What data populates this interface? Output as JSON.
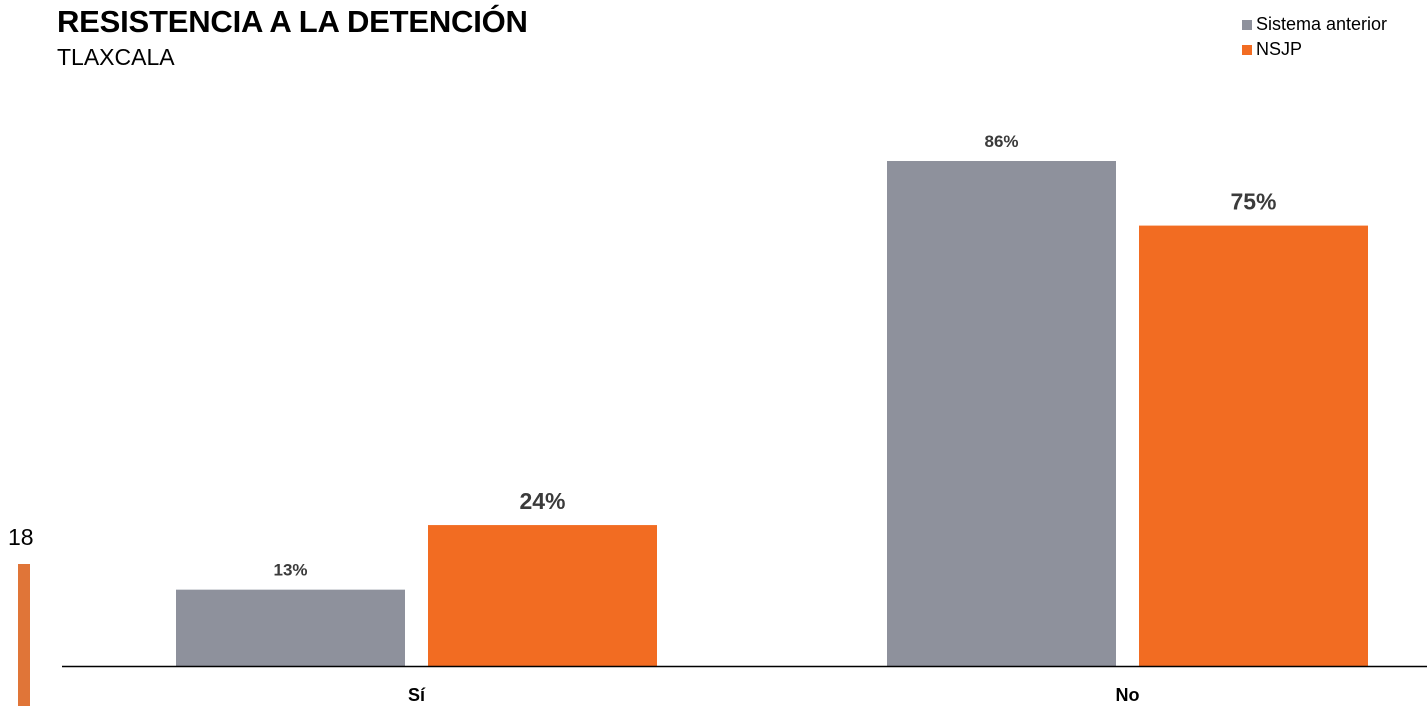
{
  "chart_data": {
    "type": "bar",
    "title": "RESISTENCIA A LA DETENCIÓN",
    "subtitle": "TLAXCALA",
    "categories": [
      "Sí",
      "No"
    ],
    "series": [
      {
        "name": "Sistema anterior",
        "color": "#8e919c",
        "values": [
          13,
          86
        ],
        "labels": [
          "13%",
          "86%"
        ]
      },
      {
        "name": "NSJP",
        "color": "#f26c22",
        "values": [
          24,
          75
        ],
        "labels": [
          "24%",
          "75%"
        ]
      }
    ],
    "ylim": [
      0,
      86
    ],
    "grid": false,
    "legend_position": "top-right",
    "xlabel": "",
    "ylabel": ""
  },
  "page": {
    "number": "18",
    "accent_color": "#e07538"
  }
}
